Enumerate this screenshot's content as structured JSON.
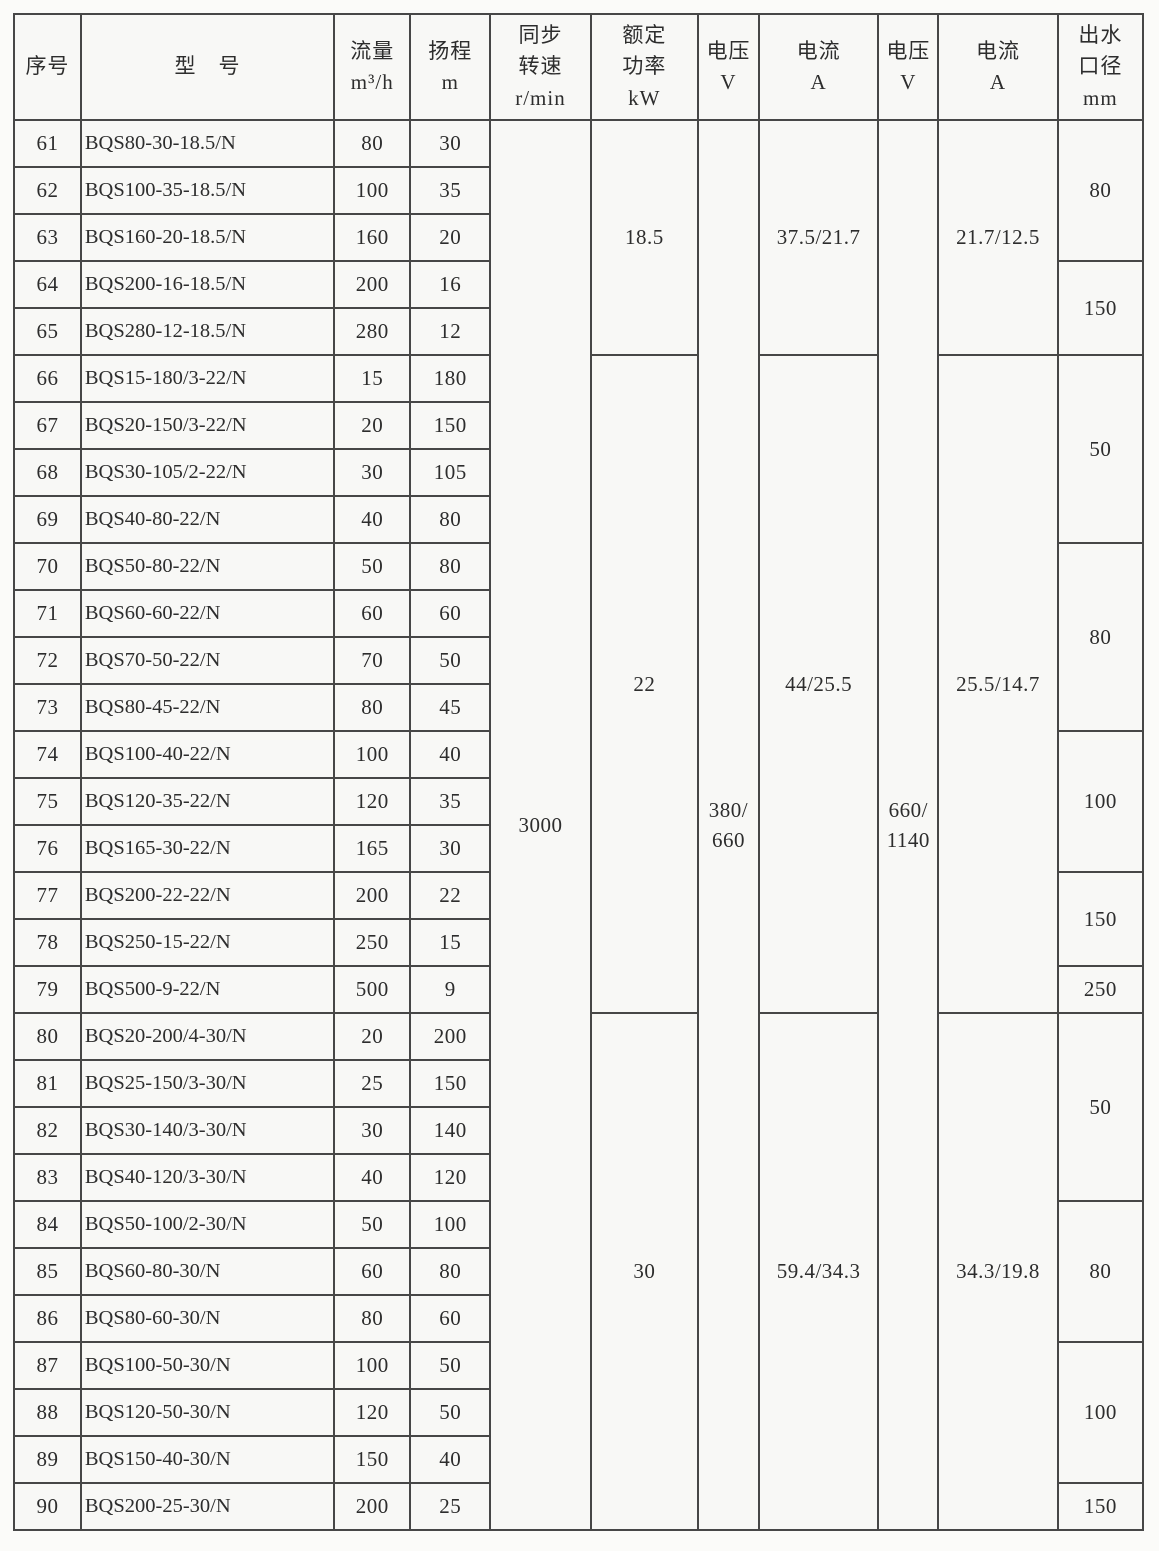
{
  "colors": {
    "border": "#474747",
    "cell_bg": "#f8f8f6",
    "page_bg": "#fbfbf9",
    "text": "#2d2d2d"
  },
  "table": {
    "headers": [
      {
        "text": "序号"
      },
      {
        "text": "型　号"
      },
      {
        "text": "流量\nm³/h"
      },
      {
        "text": "扬程\nm"
      },
      {
        "text": "同步\n转速\nr/min"
      },
      {
        "text": "额定\n功率\nkW"
      },
      {
        "text": "电压\nV"
      },
      {
        "text": "电流\nA"
      },
      {
        "text": "电压\nV"
      },
      {
        "text": "电流\nA"
      },
      {
        "text": "出水\n口径\nmm"
      }
    ],
    "merged": {
      "speed": "3000",
      "voltage_1": "380/\n660",
      "voltage_2": "660/\n1140"
    },
    "power_current_groups": [
      {
        "span": 5,
        "power": "18.5",
        "current_1": "37.5/21.7",
        "current_2": "21.7/12.5"
      },
      {
        "span": 14,
        "power": "22",
        "current_1": "44/25.5",
        "current_2": "25.5/14.7"
      },
      {
        "span": 11,
        "power": "30",
        "current_1": "59.4/34.3",
        "current_2": "34.3/19.8"
      }
    ],
    "outlet_groups": [
      {
        "span": 3,
        "value": "80"
      },
      {
        "span": 2,
        "value": "150"
      },
      {
        "span": 4,
        "value": "50"
      },
      {
        "span": 4,
        "value": "80"
      },
      {
        "span": 3,
        "value": "100"
      },
      {
        "span": 2,
        "value": "150"
      },
      {
        "span": 1,
        "value": "250"
      },
      {
        "span": 4,
        "value": "50"
      },
      {
        "span": 3,
        "value": "80"
      },
      {
        "span": 3,
        "value": "100"
      },
      {
        "span": 1,
        "value": "150"
      }
    ],
    "rows": [
      {
        "no": "61",
        "model": "BQS80-30-18.5/N",
        "flow": "80",
        "head": "30"
      },
      {
        "no": "62",
        "model": "BQS100-35-18.5/N",
        "flow": "100",
        "head": "35"
      },
      {
        "no": "63",
        "model": "BQS160-20-18.5/N",
        "flow": "160",
        "head": "20"
      },
      {
        "no": "64",
        "model": "BQS200-16-18.5/N",
        "flow": "200",
        "head": "16"
      },
      {
        "no": "65",
        "model": "BQS280-12-18.5/N",
        "flow": "280",
        "head": "12"
      },
      {
        "no": "66",
        "model": "BQS15-180/3-22/N",
        "flow": "15",
        "head": "180"
      },
      {
        "no": "67",
        "model": "BQS20-150/3-22/N",
        "flow": "20",
        "head": "150"
      },
      {
        "no": "68",
        "model": "BQS30-105/2-22/N",
        "flow": "30",
        "head": "105"
      },
      {
        "no": "69",
        "model": "BQS40-80-22/N",
        "flow": "40",
        "head": "80"
      },
      {
        "no": "70",
        "model": "BQS50-80-22/N",
        "flow": "50",
        "head": "80"
      },
      {
        "no": "71",
        "model": "BQS60-60-22/N",
        "flow": "60",
        "head": "60"
      },
      {
        "no": "72",
        "model": "BQS70-50-22/N",
        "flow": "70",
        "head": "50"
      },
      {
        "no": "73",
        "model": "BQS80-45-22/N",
        "flow": "80",
        "head": "45"
      },
      {
        "no": "74",
        "model": "BQS100-40-22/N",
        "flow": "100",
        "head": "40"
      },
      {
        "no": "75",
        "model": "BQS120-35-22/N",
        "flow": "120",
        "head": "35"
      },
      {
        "no": "76",
        "model": "BQS165-30-22/N",
        "flow": "165",
        "head": "30"
      },
      {
        "no": "77",
        "model": "BQS200-22-22/N",
        "flow": "200",
        "head": "22"
      },
      {
        "no": "78",
        "model": "BQS250-15-22/N",
        "flow": "250",
        "head": "15"
      },
      {
        "no": "79",
        "model": "BQS500-9-22/N",
        "flow": "500",
        "head": "9"
      },
      {
        "no": "80",
        "model": "BQS20-200/4-30/N",
        "flow": "20",
        "head": "200"
      },
      {
        "no": "81",
        "model": "BQS25-150/3-30/N",
        "flow": "25",
        "head": "150"
      },
      {
        "no": "82",
        "model": "BQS30-140/3-30/N",
        "flow": "30",
        "head": "140"
      },
      {
        "no": "83",
        "model": "BQS40-120/3-30/N",
        "flow": "40",
        "head": "120"
      },
      {
        "no": "84",
        "model": "BQS50-100/2-30/N",
        "flow": "50",
        "head": "100"
      },
      {
        "no": "85",
        "model": "BQS60-80-30/N",
        "flow": "60",
        "head": "80"
      },
      {
        "no": "86",
        "model": "BQS80-60-30/N",
        "flow": "80",
        "head": "60"
      },
      {
        "no": "87",
        "model": "BQS100-50-30/N",
        "flow": "100",
        "head": "50"
      },
      {
        "no": "88",
        "model": "BQS120-50-30/N",
        "flow": "120",
        "head": "50"
      },
      {
        "no": "89",
        "model": "BQS150-40-30/N",
        "flow": "150",
        "head": "40"
      },
      {
        "no": "90",
        "model": "BQS200-25-30/N",
        "flow": "200",
        "head": "25"
      }
    ]
  }
}
